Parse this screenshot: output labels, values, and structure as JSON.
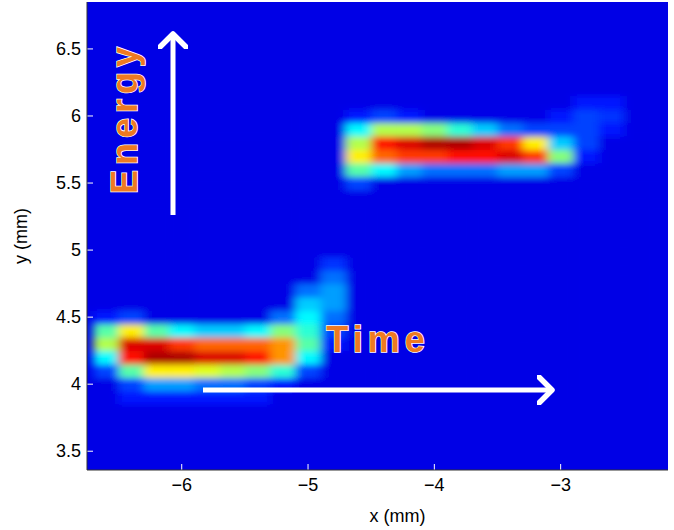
{
  "chart_data": {
    "type": "heatmap",
    "x_label": "x  (mm)",
    "y_label": "y  (mm)",
    "xlim": [
      -6.75,
      -2.15
    ],
    "ylim": [
      3.36,
      6.85
    ],
    "xticks": [
      {
        "value": -6,
        "label": "−6"
      },
      {
        "value": -5,
        "label": "−5"
      },
      {
        "value": -4,
        "label": "−4"
      },
      {
        "value": -3,
        "label": "−3"
      }
    ],
    "yticks": [
      3.5,
      4,
      4.5,
      5,
      5.5,
      6,
      6.5
    ],
    "annotations": [
      "Energy",
      "Time"
    ],
    "x": [
      -6.6,
      -6.4,
      -6.2,
      -6.0,
      -5.8,
      -5.6,
      -5.4,
      -5.2,
      -5.0,
      -4.8,
      -4.6,
      -4.4,
      -4.2,
      -4.0,
      -3.8,
      -3.6,
      -3.4,
      -3.2,
      -3.0,
      -2.8,
      -2.6,
      -2.4,
      -2.2
    ],
    "y": [
      3.9,
      4.0,
      4.1,
      4.2,
      4.3,
      4.4,
      4.5,
      4.6,
      4.7,
      4.8,
      4.9,
      5.0,
      5.1,
      5.2,
      5.3,
      5.4,
      5.5,
      5.6,
      5.7,
      5.8,
      5.9,
      6.0,
      6.1
    ],
    "cells": [
      [
        0,
        0.05,
        0.05,
        0.05,
        0.05,
        0.05,
        0.05,
        0,
        0,
        0,
        0,
        0,
        0,
        0,
        0,
        0,
        0,
        0,
        0,
        0,
        0,
        0,
        0
      ],
      [
        0,
        0.1,
        0.2,
        0.2,
        0.15,
        0.15,
        0.1,
        0.05,
        0,
        0,
        0,
        0,
        0,
        0,
        0,
        0,
        0,
        0,
        0,
        0,
        0,
        0,
        0
      ],
      [
        0.1,
        0.4,
        0.6,
        0.6,
        0.55,
        0.5,
        0.45,
        0.35,
        0.1,
        0,
        0,
        0,
        0,
        0,
        0,
        0,
        0,
        0,
        0,
        0,
        0,
        0,
        0
      ],
      [
        0.3,
        0.85,
        0.95,
        0.95,
        0.9,
        0.9,
        0.85,
        0.7,
        0.3,
        0,
        0,
        0,
        0,
        0,
        0,
        0,
        0,
        0,
        0,
        0,
        0,
        0,
        0
      ],
      [
        0.5,
        0.9,
        0.9,
        0.8,
        0.75,
        0.75,
        0.75,
        0.7,
        0.4,
        0.05,
        0,
        0,
        0,
        0,
        0,
        0,
        0,
        0,
        0,
        0,
        0,
        0,
        0
      ],
      [
        0.4,
        0.6,
        0.4,
        0.3,
        0.25,
        0.25,
        0.3,
        0.45,
        0.35,
        0.1,
        0,
        0,
        0,
        0,
        0,
        0,
        0,
        0,
        0,
        0,
        0,
        0,
        0
      ],
      [
        0.05,
        0.1,
        0,
        0,
        0,
        0,
        0,
        0.15,
        0.3,
        0.15,
        0,
        0,
        0,
        0,
        0,
        0,
        0,
        0,
        0,
        0,
        0,
        0,
        0
      ],
      [
        0,
        0,
        0,
        0,
        0,
        0,
        0,
        0,
        0.25,
        0.2,
        0,
        0,
        0,
        0,
        0,
        0,
        0,
        0,
        0,
        0,
        0,
        0,
        0
      ],
      [
        0,
        0,
        0,
        0,
        0,
        0,
        0,
        0,
        0.15,
        0.2,
        0,
        0,
        0,
        0,
        0,
        0,
        0,
        0,
        0,
        0,
        0,
        0,
        0
      ],
      [
        0,
        0,
        0,
        0,
        0,
        0,
        0,
        0,
        0,
        0.15,
        0,
        0,
        0,
        0,
        0,
        0,
        0,
        0,
        0,
        0,
        0,
        0,
        0
      ],
      [
        0,
        0,
        0,
        0,
        0,
        0,
        0,
        0,
        0,
        0.08,
        0,
        0,
        0,
        0,
        0,
        0,
        0,
        0,
        0,
        0,
        0,
        0,
        0
      ],
      [
        0,
        0,
        0,
        0,
        0,
        0,
        0,
        0,
        0,
        0,
        0,
        0,
        0,
        0,
        0,
        0,
        0,
        0,
        0,
        0,
        0,
        0,
        0
      ],
      [
        0,
        0,
        0,
        0,
        0,
        0,
        0,
        0,
        0,
        0,
        0,
        0,
        0,
        0,
        0,
        0,
        0,
        0,
        0,
        0,
        0,
        0,
        0
      ],
      [
        0,
        0,
        0,
        0,
        0,
        0,
        0,
        0,
        0,
        0,
        0,
        0,
        0,
        0,
        0,
        0,
        0,
        0,
        0,
        0,
        0,
        0,
        0
      ],
      [
        0,
        0,
        0,
        0,
        0,
        0,
        0,
        0,
        0,
        0,
        0,
        0,
        0,
        0,
        0,
        0,
        0,
        0,
        0,
        0,
        0,
        0,
        0
      ],
      [
        0,
        0,
        0,
        0,
        0,
        0,
        0,
        0,
        0,
        0,
        0,
        0,
        0,
        0,
        0,
        0,
        0,
        0,
        0,
        0,
        0,
        0,
        0
      ],
      [
        0,
        0,
        0,
        0,
        0,
        0,
        0,
        0,
        0,
        0,
        0.1,
        0,
        0,
        0,
        0,
        0,
        0,
        0,
        0,
        0,
        0,
        0,
        0
      ],
      [
        0,
        0,
        0,
        0,
        0,
        0,
        0,
        0,
        0,
        0,
        0.4,
        0.3,
        0.2,
        0.15,
        0.15,
        0.15,
        0.2,
        0.2,
        0.1,
        0,
        0,
        0,
        0
      ],
      [
        0,
        0,
        0,
        0,
        0,
        0,
        0,
        0,
        0,
        0,
        0.6,
        0.75,
        0.8,
        0.8,
        0.85,
        0.85,
        0.9,
        0.8,
        0.45,
        0.05,
        0,
        0,
        0
      ],
      [
        0,
        0,
        0,
        0,
        0,
        0,
        0,
        0,
        0,
        0,
        0.5,
        0.85,
        0.9,
        0.95,
        0.95,
        0.9,
        0.8,
        0.6,
        0.25,
        0.1,
        0,
        0,
        0
      ],
      [
        0,
        0,
        0,
        0,
        0,
        0,
        0,
        0,
        0,
        0,
        0.3,
        0.5,
        0.5,
        0.45,
        0.35,
        0.25,
        0.15,
        0.1,
        0.1,
        0.1,
        0.05,
        0,
        0
      ],
      [
        0,
        0,
        0,
        0,
        0,
        0,
        0,
        0,
        0,
        0,
        0.05,
        0.1,
        0.05,
        0,
        0,
        0,
        0,
        0,
        0.05,
        0.1,
        0.08,
        0,
        0
      ],
      [
        0,
        0,
        0,
        0,
        0,
        0,
        0,
        0,
        0,
        0,
        0,
        0,
        0,
        0,
        0,
        0,
        0,
        0,
        0,
        0.05,
        0.05,
        0,
        0
      ]
    ]
  }
}
